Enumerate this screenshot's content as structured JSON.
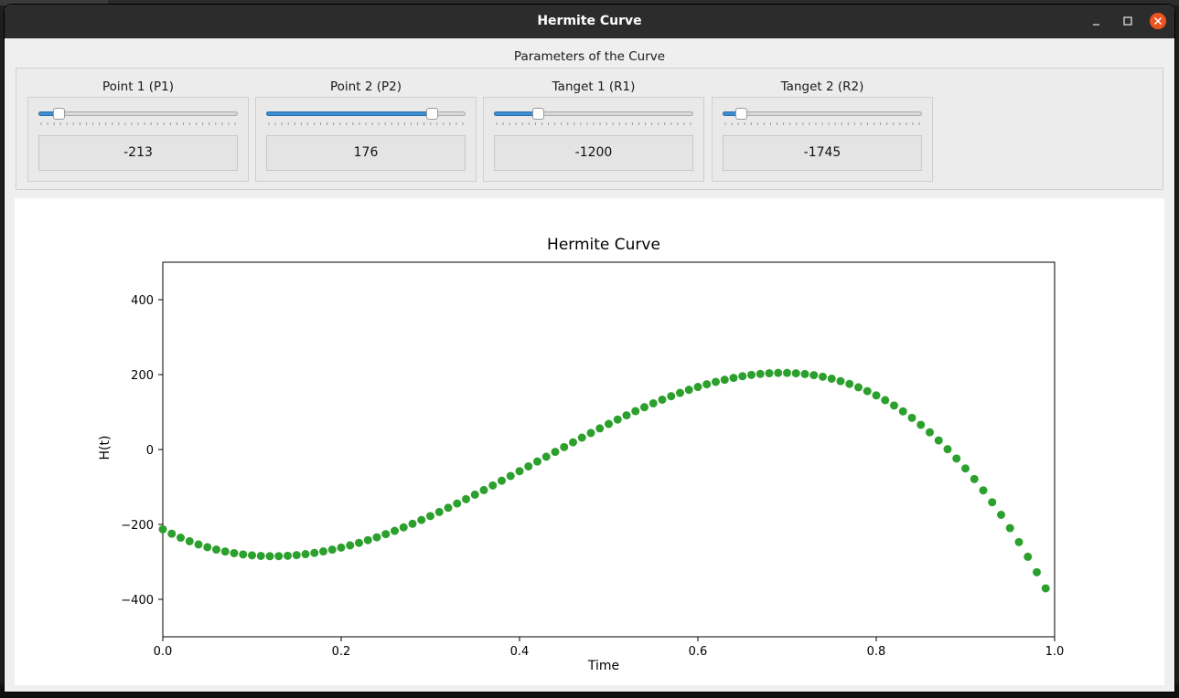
{
  "window": {
    "title": "Hermite Curve"
  },
  "parameters": {
    "group_title": "Parameters of the Curve",
    "items": [
      {
        "label": "Point 1 (P1)",
        "value": "-213",
        "slider_fraction": 0.1
      },
      {
        "label": "Point 2 (P2)",
        "value": "176",
        "slider_fraction": 0.83
      },
      {
        "label": "Tanget 1 (R1)",
        "value": "-1200",
        "slider_fraction": 0.22
      },
      {
        "label": "Tanget 2 (R2)",
        "value": "-1745",
        "slider_fraction": 0.09
      }
    ],
    "slider_color": "#3d8fd1"
  },
  "chart_data": {
    "type": "scatter",
    "title": "Hermite Curve",
    "xlabel": "Time",
    "ylabel": "H(t)",
    "xlim": [
      0.0,
      1.0
    ],
    "ylim": [
      -500,
      500
    ],
    "xticks": [
      0.0,
      0.2,
      0.4,
      0.6,
      0.8,
      1.0
    ],
    "xtick_labels": [
      "0.0",
      "0.2",
      "0.4",
      "0.6",
      "0.8",
      "1.0"
    ],
    "yticks": [
      -400,
      -200,
      0,
      200,
      400
    ],
    "ytick_labels": [
      "−400",
      "−200",
      "0",
      "200",
      "400"
    ],
    "grid": false,
    "series_color": "#2ca02c",
    "series": [
      {
        "x": [
          0.0,
          0.01,
          0.02,
          0.03,
          0.04,
          0.05,
          0.06,
          0.07,
          0.08,
          0.09,
          0.1,
          0.11,
          0.12,
          0.13,
          0.14,
          0.15,
          0.16,
          0.17,
          0.18,
          0.19,
          0.2,
          0.21,
          0.22,
          0.23,
          0.24,
          0.25,
          0.26,
          0.27,
          0.28,
          0.29,
          0.3,
          0.31,
          0.32,
          0.33,
          0.34,
          0.35,
          0.36,
          0.37,
          0.38,
          0.39,
          0.4,
          0.41,
          0.42,
          0.43,
          0.44,
          0.45,
          0.46,
          0.47,
          0.48,
          0.49,
          0.5,
          0.51,
          0.52,
          0.53,
          0.54,
          0.55,
          0.56,
          0.57,
          0.58,
          0.59,
          0.6,
          0.61,
          0.62,
          0.63,
          0.64,
          0.65,
          0.66,
          0.67,
          0.68,
          0.69,
          0.7,
          0.71,
          0.72,
          0.73,
          0.74,
          0.75,
          0.76,
          0.77,
          0.78,
          0.79,
          0.8,
          0.81,
          0.82,
          0.83,
          0.84,
          0.85,
          0.86,
          0.87,
          0.88,
          0.89,
          0.9,
          0.91,
          0.92,
          0.93,
          0.94,
          0.95,
          0.96,
          0.97,
          0.98,
          0.99
        ],
        "y": [
          -213,
          -224.8,
          -235.4,
          -244.9,
          -253.4,
          -260.8,
          -267.1,
          -272.4,
          -276.7,
          -280.1,
          -282.6,
          -284.1,
          -284.8,
          -284.7,
          -283.7,
          -281.9,
          -279.3,
          -276,
          -272,
          -267.3,
          -261.9,
          -255.9,
          -249.3,
          -242,
          -234.3,
          -225.9,
          -217.2,
          -207.9,
          -198.2,
          -188.1,
          -177.6,
          -166.8,
          -155.6,
          -144.2,
          -132.5,
          -120.5,
          -108.3,
          -95.9,
          -83.3,
          -70.7,
          -57.9,
          -45,
          -32.1,
          -19.2,
          -6.4,
          6.5,
          19.2,
          31.7,
          44.1,
          56.3,
          68.2,
          79.9,
          91.3,
          102.3,
          113,
          123.2,
          133,
          142.3,
          151.1,
          159.3,
          167,
          174.1,
          180.5,
          186.2,
          191.3,
          195.6,
          199.1,
          201.7,
          203.6,
          204.5,
          204.5,
          203.5,
          201.5,
          198.5,
          194.3,
          189.1,
          182.6,
          175,
          166.1,
          155.9,
          144.4,
          131.6,
          117.4,
          101.7,
          84.6,
          66,
          45.9,
          24.2,
          0.9,
          -24,
          -50.6,
          -78.9,
          -109,
          -140.8,
          -174.4,
          -209.9,
          -247.2,
          -286.4,
          -327.6,
          -370.7
        ]
      }
    ]
  }
}
